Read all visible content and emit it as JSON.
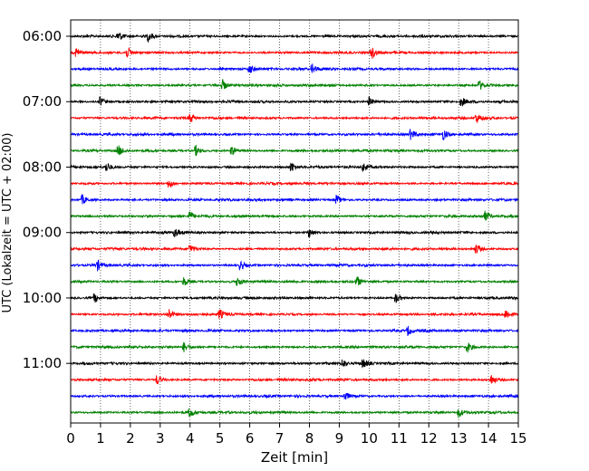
{
  "chart_data": {
    "type": "line",
    "title": "",
    "xlabel": "Zeit  [min]",
    "ylabel": "UTC (Lokalzeit = UTC + 02:00)",
    "xlim": [
      0,
      15
    ],
    "x_ticks": [
      0,
      1,
      2,
      3,
      4,
      5,
      6,
      7,
      8,
      9,
      10,
      11,
      12,
      13,
      14,
      15
    ],
    "x_tick_labels": [
      "0",
      "1",
      "2",
      "3",
      "4",
      "5",
      "6",
      "7",
      "8",
      "9",
      "10",
      "11",
      "12",
      "13",
      "14",
      "15"
    ],
    "y_tick_labels": [
      "06:00",
      "07:00",
      "08:00",
      "09:00",
      "10:00",
      "11:00"
    ],
    "row_interval_min": 15,
    "grid": "vertical dotted",
    "line_colors": [
      "#000000",
      "#ff0000",
      "#0000ff",
      "#008000"
    ],
    "traces": [
      {
        "start": "06:00",
        "events_min": [
          1.6,
          2.6
        ]
      },
      {
        "start": "06:15",
        "events_min": [
          0.2,
          1.9,
          10.1
        ]
      },
      {
        "start": "06:30",
        "events_min": [
          6.0,
          8.1
        ]
      },
      {
        "start": "06:45",
        "events_min": [
          5.1,
          13.7
        ]
      },
      {
        "start": "07:00",
        "events_min": [
          1.0,
          10.0,
          13.1
        ]
      },
      {
        "start": "07:15",
        "events_min": [
          4.0,
          13.6
        ]
      },
      {
        "start": "07:30",
        "events_min": [
          11.4,
          12.5
        ]
      },
      {
        "start": "07:45",
        "events_min": [
          1.6,
          4.2,
          5.4
        ]
      },
      {
        "start": "08:00",
        "events_min": [
          1.2,
          7.4,
          9.8
        ]
      },
      {
        "start": "08:15",
        "events_min": [
          3.3
        ]
      },
      {
        "start": "08:30",
        "events_min": [
          0.4,
          8.9
        ]
      },
      {
        "start": "08:45",
        "events_min": [
          4.0,
          13.9
        ]
      },
      {
        "start": "09:00",
        "events_min": [
          3.5,
          8.0
        ]
      },
      {
        "start": "09:15",
        "events_min": [
          4.0,
          13.6
        ]
      },
      {
        "start": "09:30",
        "events_min": [
          0.9,
          5.7
        ]
      },
      {
        "start": "09:45",
        "events_min": [
          3.8,
          5.6,
          9.6
        ]
      },
      {
        "start": "10:00",
        "events_min": [
          0.8,
          10.9
        ]
      },
      {
        "start": "10:15",
        "events_min": [
          3.3,
          5.0,
          14.6
        ]
      },
      {
        "start": "10:30",
        "events_min": [
          11.3
        ]
      },
      {
        "start": "10:45",
        "events_min": [
          3.8,
          13.3
        ]
      },
      {
        "start": "11:00",
        "events_min": [
          9.1,
          9.8
        ]
      },
      {
        "start": "11:15",
        "events_min": [
          2.9,
          14.1
        ]
      },
      {
        "start": "11:30",
        "events_min": [
          9.2
        ]
      },
      {
        "start": "11:45",
        "events_min": [
          4.0,
          13.0
        ]
      }
    ]
  }
}
